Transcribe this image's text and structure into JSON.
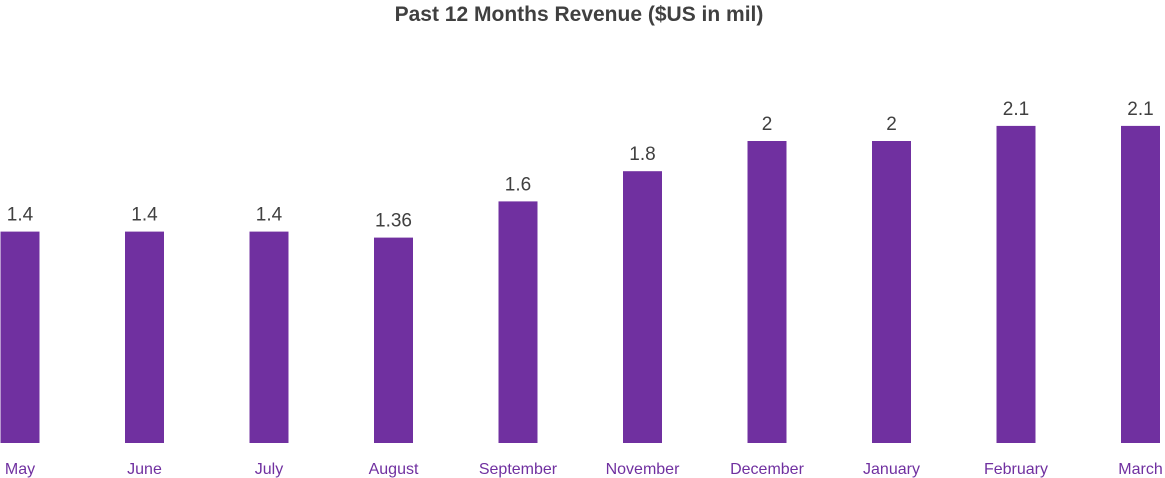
{
  "chart_data": {
    "type": "bar",
    "title": "Past 12 Months Revenue ($US in mil)",
    "xlabel": "",
    "ylabel": "",
    "categories": [
      "May",
      "June",
      "July",
      "August",
      "September",
      "November",
      "December",
      "January",
      "February",
      "March"
    ],
    "values": [
      1.4,
      1.4,
      1.4,
      1.36,
      1.6,
      1.8,
      2,
      2,
      2.1,
      2.1
    ],
    "value_labels": [
      "1.4",
      "1.4",
      "1.4",
      "1.36",
      "1.6",
      "1.8",
      "2",
      "2",
      "2.1",
      "2.1"
    ],
    "ylim": [
      0,
      2.5
    ],
    "grid": false,
    "legend": "none",
    "bar_color": "#7030a0",
    "category_label_color": "#7030a0",
    "text_color": "#404040"
  }
}
